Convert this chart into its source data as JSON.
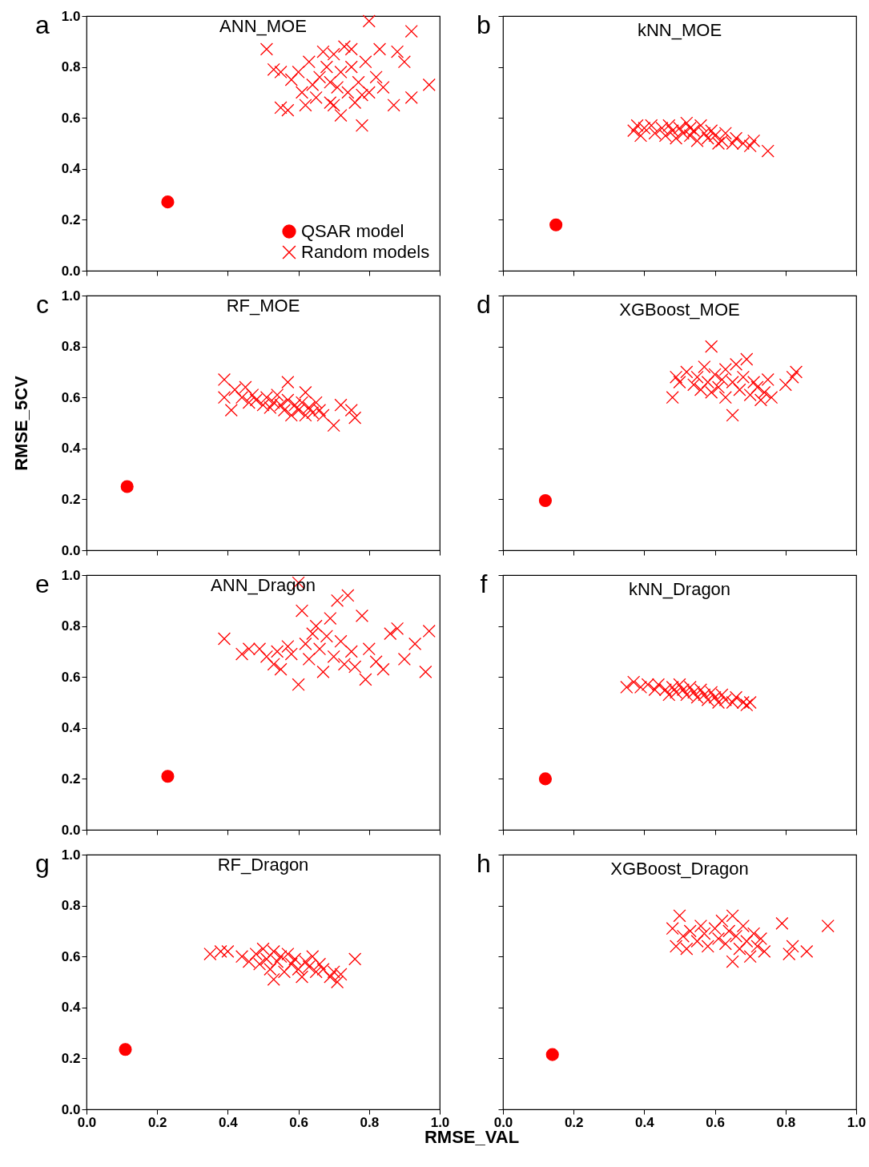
{
  "chart_data": [
    {
      "type": "scatter",
      "title": "ANN_MOE",
      "annotations": [
        "a"
      ],
      "xlim": [
        0,
        1
      ],
      "ylim": [
        0,
        1
      ],
      "xticks": [
        0,
        0.2,
        0.4,
        0.6,
        0.8,
        1
      ],
      "yticks": [
        {
          "value": 0,
          "label": "0.0"
        },
        {
          "value": 0.2,
          "label": "0.2"
        },
        {
          "value": 0.4,
          "label": "0.4"
        },
        {
          "value": 0.6,
          "label": "0.6"
        },
        {
          "value": 0.8,
          "label": "0.8"
        },
        {
          "value": 1,
          "label": "1.0"
        }
      ],
      "tick_labels": "y",
      "legend": "bottom right",
      "series": [
        {
          "name": "QSAR model",
          "color": "#ff0000",
          "marker": "circle",
          "x": [
            0.23
          ],
          "values": [
            0.27
          ]
        },
        {
          "name": "Random models",
          "color": "#ff0000",
          "marker": "cross",
          "x": [
            0.51,
            0.53,
            0.55,
            0.55,
            0.57,
            0.58,
            0.6,
            0.61,
            0.62,
            0.63,
            0.64,
            0.65,
            0.66,
            0.67,
            0.68,
            0.69,
            0.7,
            0.7,
            0.71,
            0.72,
            0.72,
            0.73,
            0.74,
            0.75,
            0.76,
            0.77,
            0.78,
            0.78,
            0.79,
            0.8,
            0.8,
            0.82,
            0.83,
            0.84,
            0.87,
            0.88,
            0.9,
            0.92,
            0.92,
            0.97,
            0.75,
            0.69
          ],
          "values": [
            0.87,
            0.79,
            0.78,
            0.64,
            0.63,
            0.75,
            0.78,
            0.7,
            0.65,
            0.82,
            0.73,
            0.68,
            0.76,
            0.86,
            0.8,
            0.74,
            0.65,
            0.85,
            0.72,
            0.78,
            0.61,
            0.88,
            0.7,
            0.8,
            0.66,
            0.74,
            0.69,
            0.57,
            0.82,
            0.98,
            0.7,
            0.76,
            0.87,
            0.72,
            0.65,
            0.86,
            0.82,
            0.94,
            0.68,
            0.73,
            0.87,
            0.66
          ]
        }
      ]
    },
    {
      "type": "scatter",
      "title": "kNN_MOE",
      "annotations": [
        "b"
      ],
      "xlim": [
        0,
        1
      ],
      "ylim": [
        0,
        1
      ],
      "xticks": [
        0,
        0.2,
        0.4,
        0.6,
        0.8,
        1
      ],
      "yticks": [
        0,
        0.2,
        0.4,
        0.6,
        0.8,
        1
      ],
      "tick_labels": false,
      "series": [
        {
          "color": "#ff0000",
          "marker": "circle",
          "x": [
            0.15
          ],
          "values": [
            0.18
          ]
        },
        {
          "color": "#ff0000",
          "marker": "cross",
          "x": [
            0.37,
            0.38,
            0.39,
            0.4,
            0.42,
            0.43,
            0.45,
            0.46,
            0.47,
            0.48,
            0.49,
            0.5,
            0.51,
            0.52,
            0.53,
            0.54,
            0.55,
            0.56,
            0.57,
            0.58,
            0.59,
            0.6,
            0.62,
            0.63,
            0.65,
            0.66,
            0.68,
            0.7,
            0.71,
            0.75,
            0.61,
            0.53
          ],
          "values": [
            0.55,
            0.57,
            0.53,
            0.56,
            0.57,
            0.54,
            0.56,
            0.53,
            0.57,
            0.55,
            0.52,
            0.56,
            0.54,
            0.58,
            0.53,
            0.55,
            0.51,
            0.57,
            0.54,
            0.52,
            0.55,
            0.53,
            0.51,
            0.54,
            0.5,
            0.52,
            0.5,
            0.49,
            0.51,
            0.47,
            0.5,
            0.56
          ]
        }
      ]
    },
    {
      "type": "scatter",
      "title": "RF_MOE",
      "annotations": [
        "c"
      ],
      "ylabel": "RMSE_5CV",
      "xlim": [
        0,
        1
      ],
      "ylim": [
        0,
        1
      ],
      "xticks": [
        0,
        0.2,
        0.4,
        0.6,
        0.8,
        1
      ],
      "yticks": [
        {
          "value": 0,
          "label": "0.0"
        },
        {
          "value": 0.2,
          "label": "0.2"
        },
        {
          "value": 0.4,
          "label": "0.4"
        },
        {
          "value": 0.6,
          "label": "0.6"
        },
        {
          "value": 0.8,
          "label": "0.8"
        },
        {
          "value": 1,
          "label": "1.0"
        }
      ],
      "tick_labels": "y",
      "series": [
        {
          "color": "#ff0000",
          "marker": "circle",
          "x": [
            0.115
          ],
          "values": [
            0.25
          ]
        },
        {
          "color": "#ff0000",
          "marker": "cross",
          "x": [
            0.39,
            0.39,
            0.41,
            0.42,
            0.44,
            0.45,
            0.46,
            0.47,
            0.48,
            0.5,
            0.51,
            0.52,
            0.53,
            0.54,
            0.55,
            0.56,
            0.57,
            0.57,
            0.58,
            0.59,
            0.6,
            0.61,
            0.62,
            0.62,
            0.63,
            0.64,
            0.65,
            0.66,
            0.67,
            0.7,
            0.72,
            0.75,
            0.76
          ],
          "values": [
            0.67,
            0.6,
            0.55,
            0.63,
            0.6,
            0.64,
            0.58,
            0.61,
            0.59,
            0.57,
            0.6,
            0.56,
            0.58,
            0.61,
            0.57,
            0.55,
            0.59,
            0.66,
            0.53,
            0.57,
            0.55,
            0.58,
            0.62,
            0.53,
            0.56,
            0.54,
            0.58,
            0.55,
            0.53,
            0.49,
            0.57,
            0.55,
            0.52
          ]
        }
      ]
    },
    {
      "type": "scatter",
      "title": "XGBoost_MOE",
      "annotations": [
        "d"
      ],
      "xlim": [
        0,
        1
      ],
      "ylim": [
        0,
        1
      ],
      "xticks": [
        0,
        0.2,
        0.4,
        0.6,
        0.8,
        1
      ],
      "yticks": [
        0,
        0.2,
        0.4,
        0.6,
        0.8,
        1
      ],
      "tick_labels": false,
      "series": [
        {
          "color": "#ff0000",
          "marker": "circle",
          "x": [
            0.12
          ],
          "values": [
            0.195
          ]
        },
        {
          "color": "#ff0000",
          "marker": "cross",
          "x": [
            0.48,
            0.49,
            0.5,
            0.52,
            0.54,
            0.55,
            0.56,
            0.57,
            0.58,
            0.59,
            0.6,
            0.59,
            0.61,
            0.62,
            0.63,
            0.63,
            0.65,
            0.65,
            0.66,
            0.67,
            0.68,
            0.69,
            0.7,
            0.71,
            0.72,
            0.73,
            0.74,
            0.75,
            0.76,
            0.8,
            0.82,
            0.83
          ],
          "values": [
            0.6,
            0.68,
            0.66,
            0.7,
            0.65,
            0.68,
            0.63,
            0.72,
            0.66,
            0.62,
            0.69,
            0.8,
            0.64,
            0.67,
            0.71,
            0.6,
            0.53,
            0.66,
            0.73,
            0.63,
            0.68,
            0.75,
            0.61,
            0.66,
            0.64,
            0.59,
            0.62,
            0.67,
            0.6,
            0.65,
            0.68,
            0.7
          ]
        }
      ]
    },
    {
      "type": "scatter",
      "title": "ANN_Dragon",
      "annotations": [
        "e"
      ],
      "xlim": [
        0,
        1
      ],
      "ylim": [
        0,
        1
      ],
      "xticks": [
        0,
        0.2,
        0.4,
        0.6,
        0.8,
        1
      ],
      "yticks": [
        {
          "value": 0,
          "label": "0.0"
        },
        {
          "value": 0.2,
          "label": "0.2"
        },
        {
          "value": 0.4,
          "label": "0.4"
        },
        {
          "value": 0.6,
          "label": "0.6"
        },
        {
          "value": 0.8,
          "label": "0.8"
        },
        {
          "value": 1,
          "label": "1.0"
        }
      ],
      "tick_labels": "y",
      "series": [
        {
          "color": "#ff0000",
          "marker": "circle",
          "x": [
            0.23
          ],
          "values": [
            0.21
          ]
        },
        {
          "color": "#ff0000",
          "marker": "cross",
          "x": [
            0.39,
            0.44,
            0.46,
            0.49,
            0.51,
            0.53,
            0.54,
            0.55,
            0.57,
            0.58,
            0.6,
            0.6,
            0.61,
            0.62,
            0.63,
            0.64,
            0.65,
            0.66,
            0.67,
            0.68,
            0.69,
            0.7,
            0.71,
            0.72,
            0.73,
            0.74,
            0.75,
            0.76,
            0.78,
            0.79,
            0.8,
            0.82,
            0.84,
            0.86,
            0.88,
            0.9,
            0.93,
            0.96,
            0.97
          ],
          "values": [
            0.75,
            0.69,
            0.71,
            0.71,
            0.68,
            0.65,
            0.7,
            0.63,
            0.72,
            0.69,
            0.57,
            0.97,
            0.86,
            0.73,
            0.67,
            0.77,
            0.8,
            0.71,
            0.62,
            0.76,
            0.83,
            0.68,
            0.9,
            0.74,
            0.65,
            0.92,
            0.7,
            0.64,
            0.84,
            0.59,
            0.71,
            0.66,
            0.63,
            0.77,
            0.79,
            0.67,
            0.73,
            0.62,
            0.78
          ]
        }
      ]
    },
    {
      "type": "scatter",
      "title": "kNN_Dragon",
      "annotations": [
        "f"
      ],
      "xlim": [
        0,
        1
      ],
      "ylim": [
        0,
        1
      ],
      "xticks": [
        0,
        0.2,
        0.4,
        0.6,
        0.8,
        1
      ],
      "yticks": [
        0,
        0.2,
        0.4,
        0.6,
        0.8,
        1
      ],
      "tick_labels": false,
      "series": [
        {
          "color": "#ff0000",
          "marker": "circle",
          "x": [
            0.12
          ],
          "values": [
            0.2
          ]
        },
        {
          "color": "#ff0000",
          "marker": "cross",
          "x": [
            0.35,
            0.37,
            0.39,
            0.41,
            0.43,
            0.44,
            0.46,
            0.47,
            0.48,
            0.49,
            0.5,
            0.51,
            0.52,
            0.53,
            0.54,
            0.55,
            0.56,
            0.57,
            0.58,
            0.59,
            0.6,
            0.61,
            0.62,
            0.63,
            0.65,
            0.66,
            0.68,
            0.69,
            0.7
          ],
          "values": [
            0.56,
            0.58,
            0.56,
            0.57,
            0.55,
            0.57,
            0.55,
            0.53,
            0.56,
            0.54,
            0.57,
            0.55,
            0.53,
            0.56,
            0.54,
            0.52,
            0.55,
            0.53,
            0.51,
            0.54,
            0.52,
            0.5,
            0.53,
            0.51,
            0.5,
            0.52,
            0.5,
            0.49,
            0.5
          ]
        }
      ]
    },
    {
      "type": "scatter",
      "title": "RF_Dragon",
      "annotations": [
        "g"
      ],
      "xlabel": "RMSE_VAL",
      "xlim": [
        0,
        1
      ],
      "ylim": [
        0,
        1
      ],
      "xticks": [
        {
          "value": 0,
          "label": "0.0"
        },
        {
          "value": 0.2,
          "label": "0.2"
        },
        {
          "value": 0.4,
          "label": "0.4"
        },
        {
          "value": 0.6,
          "label": "0.6"
        },
        {
          "value": 0.8,
          "label": "0.8"
        },
        {
          "value": 1,
          "label": "1.0"
        }
      ],
      "yticks": [
        {
          "value": 0,
          "label": "0.0"
        },
        {
          "value": 0.2,
          "label": "0.2"
        },
        {
          "value": 0.4,
          "label": "0.4"
        },
        {
          "value": 0.6,
          "label": "0.6"
        },
        {
          "value": 0.8,
          "label": "0.8"
        },
        {
          "value": 1,
          "label": "1.0"
        }
      ],
      "series": [
        {
          "color": "#ff0000",
          "marker": "circle",
          "x": [
            0.11
          ],
          "values": [
            0.235
          ]
        },
        {
          "color": "#ff0000",
          "marker": "cross",
          "x": [
            0.35,
            0.38,
            0.4,
            0.44,
            0.46,
            0.48,
            0.49,
            0.5,
            0.51,
            0.52,
            0.53,
            0.54,
            0.55,
            0.56,
            0.57,
            0.58,
            0.59,
            0.6,
            0.61,
            0.62,
            0.63,
            0.64,
            0.65,
            0.66,
            0.67,
            0.69,
            0.7,
            0.71,
            0.72,
            0.76,
            0.53
          ],
          "values": [
            0.61,
            0.62,
            0.62,
            0.6,
            0.58,
            0.61,
            0.57,
            0.63,
            0.59,
            0.55,
            0.62,
            0.58,
            0.6,
            0.54,
            0.61,
            0.57,
            0.59,
            0.55,
            0.52,
            0.58,
            0.56,
            0.6,
            0.54,
            0.57,
            0.55,
            0.52,
            0.54,
            0.5,
            0.53,
            0.59,
            0.51
          ]
        }
      ]
    },
    {
      "type": "scatter",
      "title": "XGBoost_Dragon",
      "annotations": [
        "h"
      ],
      "xlim": [
        0,
        1
      ],
      "ylim": [
        0,
        1
      ],
      "xticks": [
        {
          "value": 0,
          "label": "0.0"
        },
        {
          "value": 0.2,
          "label": "0.2"
        },
        {
          "value": 0.4,
          "label": "0.4"
        },
        {
          "value": 0.6,
          "label": "0.6"
        },
        {
          "value": 0.8,
          "label": "0.8"
        },
        {
          "value": 1,
          "label": "1.0"
        }
      ],
      "yticks": [
        0,
        0.2,
        0.4,
        0.6,
        0.8,
        1
      ],
      "tick_labels": "x",
      "series": [
        {
          "color": "#ff0000",
          "marker": "circle",
          "x": [
            0.14
          ],
          "values": [
            0.215
          ]
        },
        {
          "color": "#ff0000",
          "marker": "cross",
          "x": [
            0.48,
            0.49,
            0.5,
            0.51,
            0.52,
            0.53,
            0.55,
            0.56,
            0.57,
            0.58,
            0.6,
            0.61,
            0.62,
            0.63,
            0.64,
            0.65,
            0.65,
            0.66,
            0.67,
            0.68,
            0.69,
            0.7,
            0.71,
            0.72,
            0.73,
            0.74,
            0.79,
            0.81,
            0.82,
            0.86,
            0.92
          ],
          "values": [
            0.71,
            0.64,
            0.76,
            0.68,
            0.63,
            0.7,
            0.66,
            0.72,
            0.69,
            0.64,
            0.71,
            0.67,
            0.74,
            0.65,
            0.7,
            0.58,
            0.76,
            0.68,
            0.63,
            0.72,
            0.66,
            0.6,
            0.69,
            0.64,
            0.67,
            0.62,
            0.73,
            0.61,
            0.64,
            0.62,
            0.72
          ]
        }
      ]
    }
  ]
}
